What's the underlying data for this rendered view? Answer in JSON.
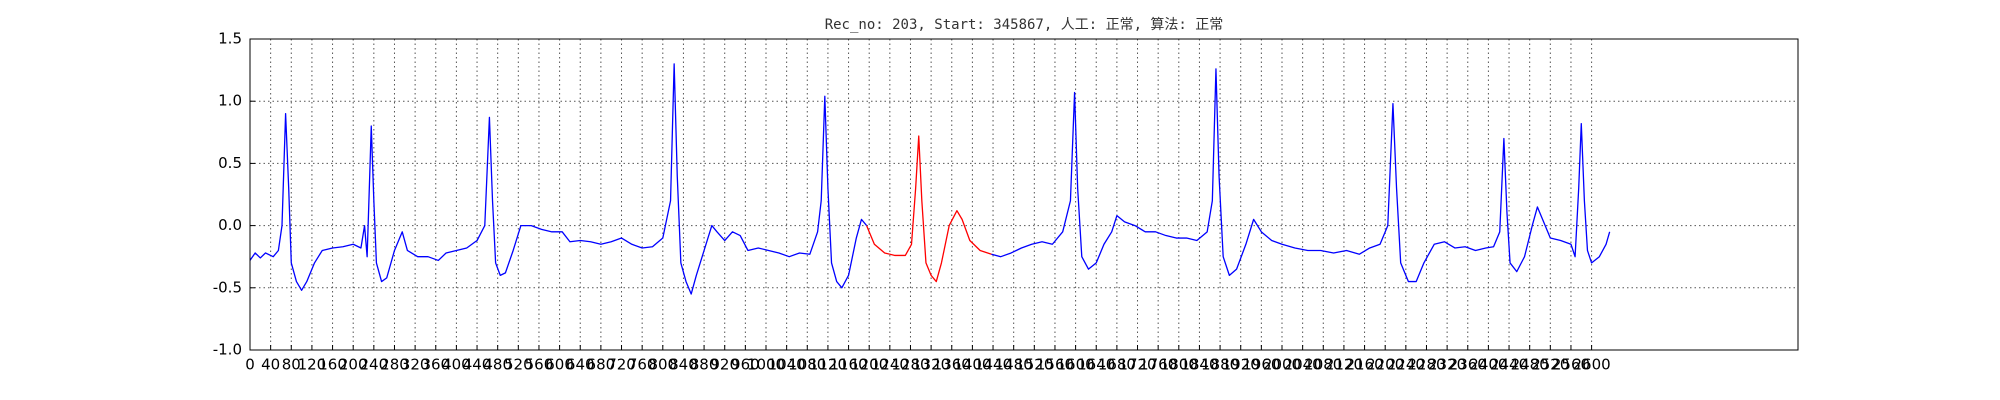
{
  "chart_data": {
    "type": "line",
    "title": "Rec_no: 203, Start: 345867, 人工: 正常, 算法: 正常",
    "xlim": [
      0,
      3000
    ],
    "ylim": [
      -1.0,
      1.5
    ],
    "xticks": [
      0,
      40,
      80,
      120,
      160,
      200,
      240,
      280,
      320,
      360,
      400,
      440,
      480,
      520,
      560,
      600,
      640,
      680,
      720,
      760,
      800,
      840,
      880,
      920,
      960,
      1000,
      1040,
      1080,
      1120,
      1160,
      1200,
      1240,
      1280,
      1320,
      1360,
      1400,
      1440,
      1480,
      1520,
      1560,
      1600,
      1640,
      1680,
      1720,
      1760,
      1800,
      1840,
      1880,
      1920,
      1960,
      2000,
      2040,
      2080,
      2120,
      2160,
      2200,
      2240,
      2280,
      2320,
      2360,
      2400,
      2440,
      2480,
      2520,
      2560,
      2600
    ],
    "yticks": [
      {
        "value": -1.0,
        "label": "-1.0"
      },
      -0.5,
      {
        "value": 0.0,
        "label": "0.0"
      },
      0.5,
      {
        "value": 1.0,
        "label": "1.0"
      },
      1.5
    ],
    "grid": true,
    "series": [
      {
        "color": "#0000ff",
        "x": [
          0,
          10,
          20,
          30,
          45,
          55,
          62,
          69,
          75,
          80,
          90,
          100,
          110,
          125,
          140,
          160,
          180,
          200,
          215,
          222,
          227,
          232,
          235,
          240,
          245,
          255,
          265,
          280,
          295,
          305,
          325,
          345,
          365,
          380,
          400,
          420,
          440,
          455,
          464,
          470,
          476,
          485,
          495,
          510,
          525,
          545,
          565,
          585,
          605,
          620,
          640,
          660,
          680,
          700,
          720,
          740,
          760,
          780,
          800,
          815,
          822,
          828,
          835,
          845,
          855,
          865,
          880,
          895,
          905,
          920,
          935,
          950,
          965,
          985,
          1005,
          1025,
          1045,
          1065,
          1085,
          1100,
          1107,
          1114,
          1120,
          1127,
          1137,
          1147,
          1160,
          1175,
          1185,
          1195
        ],
        "values": [
          -0.28,
          -0.22,
          -0.26,
          -0.22,
          -0.25,
          -0.2,
          0.0,
          0.9,
          0.3,
          -0.3,
          -0.45,
          -0.52,
          -0.45,
          -0.3,
          -0.2,
          -0.18,
          -0.17,
          -0.15,
          -0.18,
          0.0,
          -0.25,
          0.4,
          0.8,
          0.2,
          -0.3,
          -0.45,
          -0.42,
          -0.2,
          -0.05,
          -0.2,
          -0.25,
          -0.25,
          -0.28,
          -0.22,
          -0.2,
          -0.18,
          -0.12,
          0.0,
          0.87,
          0.2,
          -0.3,
          -0.4,
          -0.38,
          -0.2,
          0.0,
          0.0,
          -0.03,
          -0.05,
          -0.05,
          -0.13,
          -0.12,
          -0.13,
          -0.15,
          -0.13,
          -0.1,
          -0.15,
          -0.18,
          -0.17,
          -0.1,
          0.2,
          1.3,
          0.4,
          -0.3,
          -0.45,
          -0.55,
          -0.4,
          -0.2,
          0.0,
          -0.05,
          -0.12,
          -0.05,
          -0.08,
          -0.2,
          -0.18,
          -0.2,
          -0.22,
          -0.25,
          -0.22,
          -0.23,
          -0.05,
          0.2,
          1.04,
          0.3,
          -0.3,
          -0.45,
          -0.5,
          -0.4,
          -0.1,
          0.05,
          0.0
        ]
      },
      {
        "color": "#ff0000",
        "x": [
          1195,
          1210,
          1230,
          1250,
          1270,
          1282,
          1290,
          1296,
          1302,
          1310,
          1320,
          1330,
          1340,
          1355,
          1370,
          1380,
          1395,
          1415,
          1437
        ],
        "values": [
          0.0,
          -0.15,
          -0.22,
          -0.24,
          -0.24,
          -0.15,
          0.3,
          0.72,
          0.2,
          -0.3,
          -0.4,
          -0.45,
          -0.3,
          0.0,
          0.12,
          0.05,
          -0.12,
          -0.2,
          -0.23
        ]
      },
      {
        "color": "#0000ff",
        "x": [
          1437,
          1455,
          1475,
          1495,
          1515,
          1535,
          1555,
          1575,
          1590,
          1598,
          1604,
          1612,
          1625,
          1640,
          1655,
          1670,
          1680,
          1695,
          1715,
          1735,
          1755,
          1775,
          1795,
          1815,
          1835,
          1855,
          1865,
          1872,
          1878,
          1886,
          1898,
          1912,
          1930,
          1945,
          1960,
          1980,
          2000,
          2025,
          2050,
          2075,
          2100,
          2125,
          2150,
          2170,
          2190,
          2205,
          2215,
          2222,
          2230,
          2245,
          2260,
          2275,
          2295,
          2315,
          2335,
          2355,
          2375,
          2395,
          2410,
          2422,
          2430,
          2436,
          2442,
          2455,
          2470,
          2485,
          2495,
          2505,
          2520,
          2540,
          2560,
          2568,
          2575,
          2580,
          2586,
          2592,
          2600,
          2615,
          2628,
          2635
        ],
        "values": [
          -0.23,
          -0.25,
          -0.22,
          -0.18,
          -0.15,
          -0.13,
          -0.15,
          -0.05,
          0.2,
          1.07,
          0.3,
          -0.25,
          -0.35,
          -0.3,
          -0.15,
          -0.05,
          0.08,
          0.03,
          0.0,
          -0.05,
          -0.05,
          -0.08,
          -0.1,
          -0.1,
          -0.12,
          -0.05,
          0.2,
          1.26,
          0.4,
          -0.25,
          -0.4,
          -0.35,
          -0.15,
          0.05,
          -0.05,
          -0.12,
          -0.15,
          -0.18,
          -0.2,
          -0.2,
          -0.22,
          -0.2,
          -0.23,
          -0.18,
          -0.15,
          0.0,
          0.98,
          0.3,
          -0.3,
          -0.45,
          -0.45,
          -0.3,
          -0.15,
          -0.13,
          -0.18,
          -0.17,
          -0.2,
          -0.18,
          -0.17,
          -0.05,
          0.7,
          0.1,
          -0.3,
          -0.37,
          -0.25,
          0.0,
          0.15,
          0.05,
          -0.1,
          -0.12,
          -0.15,
          -0.25,
          0.3,
          0.82,
          0.2,
          -0.2,
          -0.3,
          -0.25,
          -0.15,
          -0.05
        ]
      }
    ]
  }
}
